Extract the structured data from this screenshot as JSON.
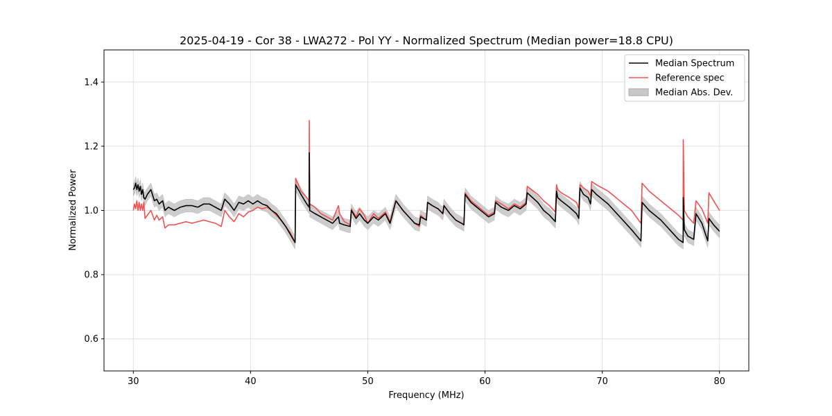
{
  "chart_data": {
    "type": "line",
    "title": "2025-04-19 - Cor 38 - LWA272 - Pol YY - Normalized Spectrum (Median power=18.8 CPU)",
    "xlabel": "Frequency (MHz)",
    "ylabel": "Normalized Power",
    "xlim": [
      27.5,
      82.5
    ],
    "ylim": [
      0.5,
      1.5
    ],
    "xticks": [
      30,
      40,
      50,
      60,
      70,
      80
    ],
    "yticks": [
      0.6,
      0.8,
      1.0,
      1.2,
      1.4
    ],
    "xtick_labels": [
      "30",
      "40",
      "50",
      "60",
      "70",
      "80"
    ],
    "ytick_labels": [
      "0.6",
      "0.8",
      "1.0",
      "1.2",
      "1.4"
    ],
    "grid": true,
    "legend_position": "top-right",
    "legend": [
      {
        "label": "Median Spectrum",
        "kind": "line",
        "color": "#000000"
      },
      {
        "label": "Reference spec",
        "kind": "line",
        "color": "#f05050"
      },
      {
        "label": "Median Abs. Dev.",
        "kind": "band",
        "color": "#b0b0b0"
      }
    ],
    "series": [
      {
        "name": "Median Spectrum",
        "color": "#000000",
        "x": [
          30.0,
          30.1,
          30.2,
          30.3,
          30.4,
          30.5,
          30.6,
          30.7,
          30.8,
          30.9,
          31.0,
          31.2,
          31.5,
          31.8,
          32.0,
          32.2,
          32.5,
          32.7,
          33.0,
          33.5,
          34.0,
          34.5,
          35.0,
          35.5,
          36.0,
          36.5,
          37.0,
          37.5,
          37.8,
          38.2,
          38.6,
          39.0,
          39.4,
          39.8,
          40.2,
          40.6,
          41.0,
          41.4,
          41.8,
          42.2,
          42.6,
          43.0,
          43.4,
          43.8,
          43.85,
          44.3,
          44.8,
          45.0,
          45.01,
          45.05,
          45.5,
          46.0,
          46.5,
          47.0,
          47.5,
          47.6,
          48.0,
          48.5,
          48.6,
          49.0,
          49.3,
          49.7,
          50.0,
          50.5,
          50.9,
          51.5,
          51.9,
          52.4,
          53.0,
          53.5,
          54.0,
          54.4,
          54.5,
          55.0,
          55.1,
          55.5,
          56.0,
          56.4,
          56.5,
          57.0,
          57.5,
          58.0,
          58.2,
          58.3,
          58.8,
          59.3,
          59.8,
          60.3,
          60.8,
          60.9,
          61.4,
          62.0,
          62.5,
          63.0,
          63.5,
          63.6,
          64.5,
          65.0,
          65.5,
          66.0,
          66.1,
          66.2,
          66.5,
          67.2,
          67.8,
          68.0,
          68.1,
          68.4,
          68.8,
          69.0,
          69.1,
          69.5,
          70.5,
          71.5,
          72.5,
          73.3,
          73.4,
          74.0,
          75.0,
          76.0,
          76.5,
          76.9,
          76.91,
          77.0,
          77.3,
          77.8,
          78.0,
          78.5,
          79.0,
          79.1,
          79.5,
          80.0
        ],
        "values": [
          1.065,
          1.07,
          1.085,
          1.065,
          1.08,
          1.06,
          1.075,
          1.05,
          1.065,
          1.04,
          1.035,
          1.05,
          1.065,
          1.03,
          1.035,
          1.02,
          1.03,
          1.0,
          1.01,
          1.0,
          1.01,
          1.015,
          1.015,
          1.01,
          1.02,
          1.02,
          1.01,
          1.0,
          1.035,
          1.02,
          1.0,
          1.025,
          1.02,
          1.03,
          1.02,
          1.03,
          1.02,
          1.015,
          1.0,
          0.99,
          0.97,
          0.95,
          0.925,
          0.9,
          1.08,
          1.05,
          1.02,
          1.01,
          1.18,
          1.0,
          0.99,
          0.98,
          0.97,
          0.96,
          0.98,
          0.96,
          0.955,
          0.95,
          1.0,
          0.975,
          0.99,
          0.97,
          0.96,
          0.98,
          0.97,
          0.99,
          0.96,
          1.03,
          1.0,
          0.98,
          0.96,
          0.955,
          0.98,
          0.97,
          1.025,
          1.015,
          1.005,
          0.99,
          1.015,
          0.99,
          0.97,
          0.96,
          0.955,
          1.05,
          1.025,
          1.01,
          0.995,
          0.98,
          0.99,
          1.025,
          1.01,
          1.0,
          1.015,
          1.005,
          1.02,
          1.055,
          1.025,
          1.0,
          0.985,
          0.965,
          1.06,
          1.04,
          1.03,
          1.01,
          0.99,
          0.975,
          1.07,
          1.05,
          1.04,
          1.02,
          1.065,
          1.05,
          1.02,
          0.98,
          0.94,
          0.905,
          1.025,
          1.0,
          0.97,
          0.93,
          0.91,
          0.9,
          1.04,
          0.94,
          0.92,
          0.91,
          0.99,
          0.96,
          0.905,
          0.975,
          0.955,
          0.935
        ],
        "mad": 0.02
      },
      {
        "name": "Reference spec",
        "color": "#f05050",
        "x": [
          30.0,
          30.1,
          30.2,
          30.3,
          30.4,
          30.5,
          30.6,
          30.7,
          30.8,
          30.9,
          31.0,
          31.2,
          31.5,
          31.8,
          32.0,
          32.2,
          32.5,
          32.7,
          33.0,
          33.5,
          34.0,
          34.5,
          35.0,
          35.5,
          36.0,
          36.5,
          37.0,
          37.5,
          37.8,
          38.2,
          38.6,
          39.0,
          39.4,
          39.8,
          40.2,
          40.6,
          41.0,
          41.4,
          41.8,
          42.2,
          42.6,
          43.0,
          43.4,
          43.8,
          43.85,
          44.3,
          44.8,
          45.0,
          45.01,
          45.05,
          45.5,
          46.0,
          46.5,
          47.0,
          47.5,
          47.6,
          48.0,
          48.5,
          48.6,
          49.0,
          49.3,
          49.7,
          50.0,
          50.5,
          50.9,
          51.5,
          51.9,
          52.4,
          53.0,
          53.5,
          54.0,
          54.4,
          54.5,
          55.0,
          55.1,
          55.5,
          56.0,
          56.4,
          56.5,
          57.0,
          57.5,
          58.0,
          58.2,
          58.3,
          58.8,
          59.3,
          59.8,
          60.3,
          60.8,
          60.9,
          61.4,
          62.0,
          62.5,
          63.0,
          63.5,
          63.6,
          64.5,
          65.0,
          65.5,
          66.0,
          66.1,
          66.2,
          66.5,
          67.2,
          67.8,
          68.0,
          68.1,
          68.4,
          68.8,
          69.0,
          69.1,
          69.5,
          70.5,
          71.5,
          72.5,
          73.3,
          73.4,
          74.0,
          75.0,
          76.0,
          76.5,
          76.9,
          76.91,
          77.0,
          77.3,
          77.8,
          78.0,
          78.5,
          79.0,
          79.1,
          79.5,
          80.0
        ],
        "values": [
          1.0,
          1.02,
          1.005,
          1.03,
          1.0,
          1.025,
          1.0,
          1.02,
          1.0,
          1.025,
          0.975,
          0.985,
          1.0,
          0.97,
          0.985,
          0.97,
          0.98,
          0.945,
          0.955,
          0.955,
          0.96,
          0.965,
          0.96,
          0.965,
          0.97,
          0.965,
          0.96,
          0.95,
          1.0,
          0.98,
          0.965,
          0.99,
          0.98,
          0.995,
          1.0,
          1.01,
          1.005,
          1.01,
          1.0,
          0.985,
          0.97,
          0.95,
          0.93,
          0.9,
          1.1,
          1.06,
          1.04,
          1.03,
          1.28,
          1.02,
          1.01,
          0.99,
          0.98,
          0.97,
          1.015,
          0.99,
          0.965,
          0.955,
          1.005,
          0.98,
          1.005,
          0.985,
          0.96,
          0.99,
          0.975,
          0.995,
          0.965,
          1.03,
          1.0,
          0.98,
          0.96,
          0.95,
          0.985,
          0.97,
          1.025,
          1.015,
          1.005,
          0.99,
          1.015,
          0.99,
          0.97,
          0.96,
          0.955,
          1.055,
          1.03,
          1.015,
          1.0,
          0.985,
          0.995,
          1.03,
          1.02,
          1.005,
          1.02,
          1.01,
          1.025,
          1.075,
          1.05,
          1.03,
          1.015,
          0.995,
          1.08,
          1.065,
          1.055,
          1.04,
          1.025,
          1.005,
          1.08,
          1.07,
          1.06,
          1.045,
          1.09,
          1.08,
          1.06,
          1.03,
          1.0,
          0.96,
          1.085,
          1.06,
          1.03,
          1.0,
          0.985,
          0.97,
          1.22,
          1.0,
          0.98,
          0.96,
          1.03,
          1.005,
          0.96,
          1.055,
          1.03,
          1.0
        ]
      }
    ]
  }
}
